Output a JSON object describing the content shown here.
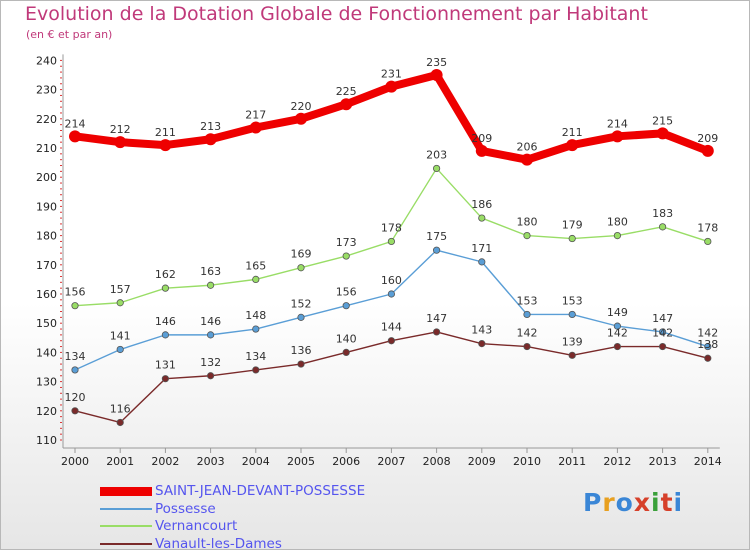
{
  "header": {
    "title": "Evolution de la Dotation Globale de Fonctionnement par Habitant",
    "subtitle": "(en € et par an)"
  },
  "logo": {
    "text": "Proxiti",
    "colors": [
      "#3a86d6",
      "#e8a020",
      "#3a86d6",
      "#d6402a",
      "#3aa03a",
      "#d6402a",
      "#3a86d6"
    ]
  },
  "chart_data": {
    "type": "line",
    "title": "Evolution de la Dotation Globale de Fonctionnement par Habitant",
    "subtitle": "(en € et par an)",
    "x": [
      "2000",
      "2001",
      "2002",
      "2003",
      "2004",
      "2005",
      "2006",
      "2007",
      "2008",
      "2009",
      "2010",
      "2011",
      "2012",
      "2013",
      "2014"
    ],
    "ylim": [
      110,
      240
    ],
    "yticks": [
      110,
      120,
      130,
      140,
      150,
      160,
      170,
      180,
      190,
      200,
      210,
      220,
      230,
      240
    ],
    "grid": false,
    "legend_position": "bottom-left",
    "series": [
      {
        "name": "SAINT-JEAN-DEVANT-POSSESSE",
        "color": "#ee0000",
        "values": [
          214,
          212,
          211,
          213,
          217,
          220,
          225,
          231,
          235,
          209,
          206,
          211,
          214,
          215,
          209
        ]
      },
      {
        "name": "Possesse",
        "color": "#5a9ed6",
        "values": [
          134,
          141,
          146,
          146,
          148,
          152,
          156,
          160,
          175,
          171,
          153,
          153,
          149,
          147,
          142
        ]
      },
      {
        "name": "Vernancourt",
        "color": "#99dd66",
        "values": [
          156,
          157,
          162,
          163,
          165,
          169,
          173,
          178,
          203,
          186,
          180,
          179,
          180,
          183,
          178
        ]
      },
      {
        "name": "Vanault-les-Dames",
        "color": "#7a2a2a",
        "values": [
          120,
          116,
          131,
          132,
          134,
          136,
          140,
          144,
          147,
          143,
          142,
          139,
          142,
          142,
          138
        ]
      }
    ]
  }
}
